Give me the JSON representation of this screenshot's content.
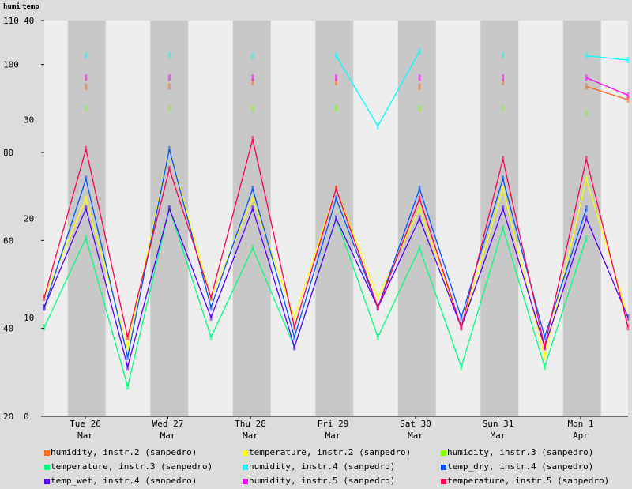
{
  "chart_data": {
    "type": "line",
    "corner_labels": [
      "humi",
      "temp"
    ],
    "humidity_axis": {
      "ticks": [
        110,
        100,
        80,
        60,
        40,
        20
      ],
      "range": [
        20,
        110
      ]
    },
    "temperature_axis": {
      "ticks": [
        40,
        30,
        20,
        10,
        0
      ],
      "range": [
        0,
        40
      ]
    },
    "x_ticks": [
      {
        "day": "Tue 26",
        "month": "Mar"
      },
      {
        "day": "Wed 27",
        "month": "Mar"
      },
      {
        "day": "Thu 28",
        "month": "Mar"
      },
      {
        "day": "Fri 29",
        "month": "Mar"
      },
      {
        "day": "Sat 30",
        "month": "Mar"
      },
      {
        "day": "Sun 31",
        "month": "Mar"
      },
      {
        "day": "Mon 1",
        "month": "Apr"
      }
    ],
    "grid": false,
    "legend_position": "bottom",
    "series": [
      {
        "name": "humidity, instr.2 (sanpedro)",
        "color": "#ff6a1a",
        "axis": "humidity",
        "values": [
          null,
          95,
          null,
          95,
          null,
          96,
          null,
          96,
          null,
          95,
          null,
          96,
          null,
          95,
          92
        ]
      },
      {
        "name": "temperature, instr.2 (sanpedro)",
        "color": "#ffff00",
        "axis": "temperature",
        "values": [
          12,
          22,
          7,
          27,
          12,
          22,
          10,
          23,
          12,
          21,
          9,
          23,
          6,
          24,
          10
        ]
      },
      {
        "name": "humidity, instr.3 (sanpedro)",
        "color": "#80ff00",
        "axis": "humidity",
        "values": [
          null,
          90,
          null,
          90,
          null,
          90,
          null,
          90,
          null,
          90,
          null,
          90,
          null,
          89,
          null
        ]
      },
      {
        "name": "temperature, instr.3 (sanpedro)",
        "color": "#00ff80",
        "axis": "temperature",
        "values": [
          9,
          18,
          3,
          21,
          8,
          17,
          7,
          20,
          8,
          17,
          5,
          19,
          5,
          18,
          null
        ]
      },
      {
        "name": "humidity, instr.4 (sanpedro)",
        "color": "#00ffff",
        "axis": "humidity",
        "values": [
          null,
          102,
          null,
          102,
          null,
          102,
          null,
          102,
          86,
          103,
          null,
          102,
          null,
          102,
          101
        ]
      },
      {
        "name": "temp_dry, instr.4 (sanpedro)",
        "color": "#0055ff",
        "axis": "temperature",
        "values": [
          11,
          24,
          6,
          27,
          11,
          23,
          8,
          22,
          11,
          23,
          10,
          24,
          8,
          21,
          null
        ]
      },
      {
        "name": "temp_wet, instr.4 (sanpedro)",
        "color": "#5500ff",
        "axis": "temperature",
        "values": [
          11,
          21,
          5,
          21,
          10,
          21,
          7,
          20,
          11,
          20,
          9,
          21,
          7,
          20,
          10
        ]
      },
      {
        "name": "humidity, instr.5 (sanpedro)",
        "color": "#ff00ff",
        "axis": "humidity",
        "values": [
          null,
          97,
          null,
          97,
          null,
          97,
          null,
          97,
          null,
          97,
          null,
          97,
          null,
          97,
          93
        ]
      },
      {
        "name": "temperature, instr.5 (sanpedro)",
        "color": "#ff0055",
        "axis": "temperature",
        "values": [
          12,
          27,
          8,
          25,
          12,
          28,
          9,
          23,
          11,
          22,
          9,
          26,
          7,
          26,
          9
        ]
      }
    ]
  }
}
